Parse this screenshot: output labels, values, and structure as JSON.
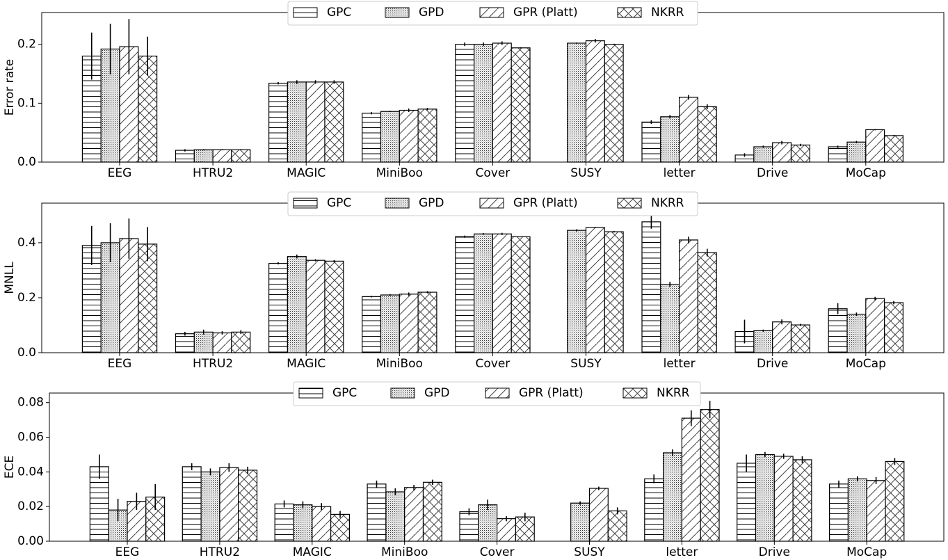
{
  "chart_data": [
    {
      "type": "bar",
      "title": "",
      "xlabel": "",
      "ylabel": "Error rate",
      "ylim": [
        0,
        0.254
      ],
      "yticks": [
        0.0,
        0.1,
        0.2
      ],
      "ytick_labels": [
        "0.0",
        "0.1",
        "0.2"
      ],
      "grid": false,
      "legend_position": "top-center",
      "categories": [
        "EEG",
        "HTRU2",
        "MAGIC",
        "MiniBoo",
        "Cover",
        "SUSY",
        "letter",
        "Drive",
        "MoCap"
      ],
      "series": [
        {
          "name": "GPC",
          "hatch": "horizontal",
          "values": [
            0.18,
            0.02,
            0.134,
            0.083,
            0.2,
            null,
            0.068,
            0.012,
            0.026
          ],
          "errors": [
            0.04,
            0.002,
            0.002,
            0.002,
            0.003,
            null,
            0.003,
            0.003,
            0.002
          ]
        },
        {
          "name": "GPD",
          "hatch": "dots",
          "values": [
            0.192,
            0.021,
            0.136,
            0.086,
            0.2,
            0.202,
            0.077,
            0.026,
            0.034
          ],
          "errors": [
            0.043,
            0.001,
            0.003,
            0.001,
            0.003,
            0.001,
            0.003,
            0.002,
            0.002
          ]
        },
        {
          "name": "GPR (Platt)",
          "hatch": "diagonal",
          "values": [
            0.196,
            0.021,
            0.136,
            0.088,
            0.202,
            0.206,
            0.11,
            0.033,
            0.055
          ],
          "errors": [
            0.047,
            0.001,
            0.003,
            0.003,
            0.003,
            0.003,
            0.004,
            0.003,
            0.001
          ]
        },
        {
          "name": "NKRR",
          "hatch": "crosshatch",
          "values": [
            0.18,
            0.021,
            0.136,
            0.09,
            0.194,
            0.2,
            0.094,
            0.029,
            0.045
          ],
          "errors": [
            0.033,
            0.001,
            0.003,
            0.002,
            0.001,
            0.001,
            0.004,
            0.002,
            0.001
          ]
        }
      ]
    },
    {
      "type": "bar",
      "title": "",
      "xlabel": "",
      "ylabel": "MNLL",
      "ylim": [
        0,
        0.544
      ],
      "yticks": [
        0.0,
        0.2,
        0.4
      ],
      "ytick_labels": [
        "0.0",
        "0.2",
        "0.4"
      ],
      "grid": false,
      "legend_position": "top-center",
      "categories": [
        "EEG",
        "HTRU2",
        "MAGIC",
        "MiniBoo",
        "Cover",
        "SUSY",
        "letter",
        "Drive",
        "MoCap"
      ],
      "series": [
        {
          "name": "GPC",
          "hatch": "horizontal",
          "values": [
            0.39,
            0.069,
            0.325,
            0.204,
            0.422,
            null,
            0.476,
            0.077,
            0.16
          ],
          "errors": [
            0.071,
            0.007,
            0.004,
            0.003,
            0.004,
            null,
            0.025,
            0.043,
            0.02
          ]
        },
        {
          "name": "GPD",
          "hatch": "dots",
          "values": [
            0.4,
            0.075,
            0.35,
            0.21,
            0.432,
            0.445,
            0.248,
            0.08,
            0.14
          ],
          "errors": [
            0.071,
            0.009,
            0.007,
            0.003,
            0.003,
            0.004,
            0.01,
            0.004,
            0.006
          ]
        },
        {
          "name": "GPR (Platt)",
          "hatch": "diagonal",
          "values": [
            0.415,
            0.072,
            0.336,
            0.213,
            0.432,
            0.455,
            0.41,
            0.112,
            0.197
          ],
          "errors": [
            0.073,
            0.006,
            0.004,
            0.006,
            0.004,
            0.002,
            0.012,
            0.009,
            0.006
          ]
        },
        {
          "name": "NKRR",
          "hatch": "crosshatch",
          "values": [
            0.395,
            0.075,
            0.333,
            0.22,
            0.422,
            0.44,
            0.364,
            0.101,
            0.182
          ],
          "errors": [
            0.062,
            0.007,
            0.004,
            0.004,
            0.001,
            0.003,
            0.014,
            0.004,
            0.006
          ]
        }
      ]
    },
    {
      "type": "bar",
      "title": "",
      "xlabel": "",
      "ylabel": "ECE",
      "ylim": [
        0,
        0.0855
      ],
      "yticks": [
        0.0,
        0.02,
        0.04,
        0.06,
        0.08
      ],
      "ytick_labels": [
        "0.00",
        "0.02",
        "0.04",
        "0.06",
        "0.08"
      ],
      "grid": false,
      "legend_position": "top-center",
      "categories": [
        "EEG",
        "HTRU2",
        "MAGIC",
        "MiniBoo",
        "Cover",
        "SUSY",
        "letter",
        "Drive",
        "MoCap"
      ],
      "series": [
        {
          "name": "GPC",
          "hatch": "horizontal",
          "values": [
            0.043,
            0.043,
            0.0215,
            0.033,
            0.017,
            null,
            0.036,
            0.045,
            0.033
          ],
          "errors": [
            0.007,
            0.002,
            0.002,
            0.002,
            0.002,
            null,
            0.0025,
            0.005,
            0.002
          ]
        },
        {
          "name": "GPD",
          "hatch": "dots",
          "values": [
            0.018,
            0.04,
            0.021,
            0.0285,
            0.021,
            0.022,
            0.051,
            0.05,
            0.036
          ],
          "errors": [
            0.0065,
            0.002,
            0.002,
            0.002,
            0.003,
            0.001,
            0.002,
            0.0015,
            0.0015
          ]
        },
        {
          "name": "GPR (Platt)",
          "hatch": "diagonal",
          "values": [
            0.023,
            0.0425,
            0.02,
            0.031,
            0.013,
            0.0305,
            0.071,
            0.049,
            0.035
          ],
          "errors": [
            0.005,
            0.0025,
            0.002,
            0.0015,
            0.0015,
            0.001,
            0.0045,
            0.0015,
            0.002
          ]
        },
        {
          "name": "NKRR",
          "hatch": "crosshatch",
          "values": [
            0.0255,
            0.041,
            0.0155,
            0.034,
            0.014,
            0.0175,
            0.076,
            0.047,
            0.046
          ],
          "errors": [
            0.0075,
            0.002,
            0.002,
            0.0015,
            0.0025,
            0.002,
            0.005,
            0.002,
            0.002
          ]
        }
      ]
    }
  ]
}
